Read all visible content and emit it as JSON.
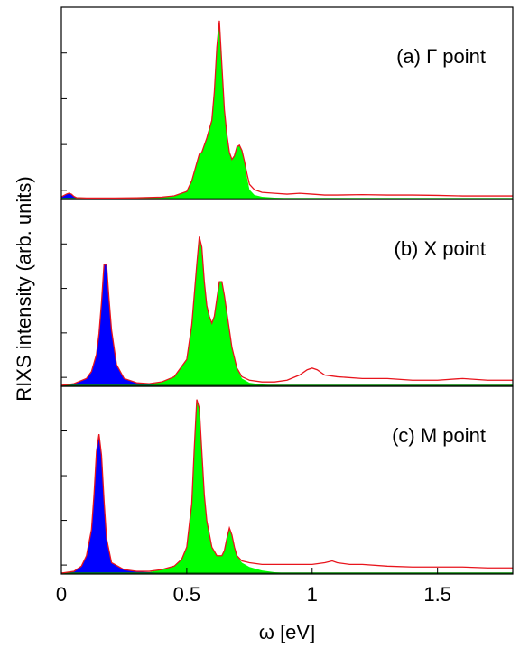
{
  "chart_data": {
    "type": "area",
    "xlabel": "ω [eV]",
    "ylabel": "RIXS intensity (arb. units)",
    "xlim": [
      0,
      1.8
    ],
    "xticks": [
      0,
      0.5,
      1,
      1.5
    ],
    "xtick_labels": [
      "0",
      "0.5",
      "1",
      "1.5"
    ],
    "ylim": [
      0,
      1.05
    ],
    "grid": false,
    "colors": {
      "total_line": "#e8141c",
      "low_energy_fill": "#0000ff",
      "main_fill": "#00ff00",
      "baseline": "#008000",
      "frame": "#000000"
    },
    "panels": [
      {
        "label": "(a) Γ point",
        "x": [
          0,
          0.02,
          0.03,
          0.04,
          0.05,
          0.06,
          0.1,
          0.2,
          0.3,
          0.4,
          0.45,
          0.5,
          0.52,
          0.54,
          0.55,
          0.56,
          0.58,
          0.6,
          0.61,
          0.62,
          0.63,
          0.64,
          0.65,
          0.66,
          0.67,
          0.68,
          0.69,
          0.7,
          0.71,
          0.72,
          0.73,
          0.74,
          0.75,
          0.77,
          0.8,
          0.85,
          0.9,
          0.95,
          1.0,
          1.05,
          1.1,
          1.2,
          1.3,
          1.4,
          1.5,
          1.6,
          1.7,
          1.8
        ],
        "total": [
          0.01,
          0.025,
          0.03,
          0.025,
          0.012,
          0.005,
          0.003,
          0.003,
          0.004,
          0.008,
          0.015,
          0.04,
          0.1,
          0.2,
          0.25,
          0.26,
          0.34,
          0.44,
          0.6,
          0.85,
          1.0,
          0.75,
          0.5,
          0.36,
          0.26,
          0.22,
          0.24,
          0.29,
          0.3,
          0.27,
          0.21,
          0.14,
          0.08,
          0.05,
          0.035,
          0.03,
          0.025,
          0.03,
          0.025,
          0.02,
          0.02,
          0.022,
          0.02,
          0.02,
          0.018,
          0.015,
          0.015,
          0.015
        ],
        "blue_fill": [
          0.01,
          0.025,
          0.03,
          0.025,
          0.012,
          0.005,
          0.0,
          0,
          0,
          0,
          0,
          0,
          0,
          0,
          0,
          0,
          0,
          0,
          0,
          0,
          0,
          0,
          0,
          0,
          0,
          0,
          0,
          0,
          0,
          0,
          0,
          0,
          0,
          0,
          0,
          0,
          0,
          0,
          0,
          0,
          0,
          0,
          0,
          0,
          0,
          0,
          0,
          0
        ],
        "green_fill": [
          0,
          0,
          0,
          0,
          0,
          0,
          0.002,
          0.002,
          0.003,
          0.007,
          0.014,
          0.04,
          0.1,
          0.2,
          0.25,
          0.26,
          0.34,
          0.44,
          0.6,
          0.85,
          1.0,
          0.75,
          0.5,
          0.36,
          0.26,
          0.22,
          0.24,
          0.29,
          0.3,
          0.27,
          0.21,
          0.12,
          0.05,
          0.02,
          0.01,
          0.005,
          0.002,
          0.001,
          0,
          0,
          0,
          0,
          0,
          0,
          0,
          0,
          0,
          0
        ]
      },
      {
        "label": "(b) X point",
        "x": [
          0,
          0.05,
          0.1,
          0.12,
          0.14,
          0.15,
          0.16,
          0.17,
          0.18,
          0.19,
          0.2,
          0.22,
          0.25,
          0.3,
          0.35,
          0.4,
          0.45,
          0.5,
          0.52,
          0.54,
          0.55,
          0.56,
          0.57,
          0.58,
          0.59,
          0.6,
          0.61,
          0.62,
          0.63,
          0.64,
          0.65,
          0.66,
          0.67,
          0.68,
          0.7,
          0.72,
          0.75,
          0.8,
          0.85,
          0.9,
          0.95,
          0.98,
          1.0,
          1.02,
          1.05,
          1.1,
          1.2,
          1.3,
          1.4,
          1.5,
          1.6,
          1.7,
          1.8
        ],
        "total": [
          0.0,
          0.01,
          0.04,
          0.08,
          0.18,
          0.3,
          0.48,
          0.7,
          0.7,
          0.5,
          0.32,
          0.12,
          0.04,
          0.015,
          0.01,
          0.02,
          0.05,
          0.15,
          0.35,
          0.7,
          0.86,
          0.8,
          0.6,
          0.46,
          0.4,
          0.36,
          0.4,
          0.5,
          0.6,
          0.6,
          0.52,
          0.42,
          0.32,
          0.22,
          0.1,
          0.05,
          0.03,
          0.02,
          0.02,
          0.03,
          0.06,
          0.09,
          0.1,
          0.09,
          0.06,
          0.05,
          0.04,
          0.04,
          0.03,
          0.03,
          0.04,
          0.03,
          0.03
        ],
        "blue_fill": [
          0.0,
          0.01,
          0.04,
          0.08,
          0.18,
          0.3,
          0.48,
          0.7,
          0.7,
          0.5,
          0.32,
          0.12,
          0.04,
          0.015,
          0.005,
          0,
          0,
          0,
          0,
          0,
          0,
          0,
          0,
          0,
          0,
          0,
          0,
          0,
          0,
          0,
          0,
          0,
          0,
          0,
          0,
          0,
          0,
          0,
          0,
          0,
          0,
          0,
          0,
          0,
          0,
          0,
          0,
          0,
          0,
          0,
          0,
          0,
          0
        ],
        "green_fill": [
          0,
          0,
          0,
          0,
          0,
          0,
          0,
          0,
          0,
          0,
          0,
          0,
          0,
          0,
          0.005,
          0.02,
          0.05,
          0.15,
          0.35,
          0.7,
          0.86,
          0.8,
          0.6,
          0.46,
          0.4,
          0.36,
          0.4,
          0.5,
          0.6,
          0.6,
          0.52,
          0.42,
          0.32,
          0.22,
          0.1,
          0.04,
          0.015,
          0.005,
          0,
          0,
          0,
          0,
          0,
          0,
          0,
          0,
          0,
          0,
          0,
          0,
          0,
          0,
          0
        ]
      },
      {
        "label": "(c) M point",
        "x": [
          0,
          0.05,
          0.08,
          0.1,
          0.12,
          0.13,
          0.14,
          0.15,
          0.16,
          0.17,
          0.18,
          0.2,
          0.25,
          0.3,
          0.35,
          0.4,
          0.45,
          0.48,
          0.5,
          0.52,
          0.53,
          0.54,
          0.55,
          0.56,
          0.57,
          0.58,
          0.6,
          0.62,
          0.64,
          0.65,
          0.66,
          0.67,
          0.68,
          0.69,
          0.7,
          0.72,
          0.75,
          0.8,
          0.85,
          0.9,
          0.95,
          1.0,
          1.05,
          1.08,
          1.1,
          1.15,
          1.2,
          1.3,
          1.4,
          1.5,
          1.6,
          1.7,
          1.8
        ],
        "total": [
          0.0,
          0.01,
          0.04,
          0.1,
          0.25,
          0.45,
          0.7,
          0.8,
          0.68,
          0.42,
          0.2,
          0.06,
          0.02,
          0.01,
          0.01,
          0.02,
          0.04,
          0.08,
          0.15,
          0.4,
          0.72,
          1.0,
          0.95,
          0.7,
          0.45,
          0.3,
          0.15,
          0.1,
          0.1,
          0.13,
          0.2,
          0.26,
          0.22,
          0.15,
          0.1,
          0.07,
          0.06,
          0.05,
          0.05,
          0.05,
          0.05,
          0.05,
          0.06,
          0.07,
          0.06,
          0.05,
          0.05,
          0.04,
          0.035,
          0.035,
          0.035,
          0.03,
          0.03
        ],
        "blue_fill": [
          0.0,
          0.01,
          0.04,
          0.1,
          0.25,
          0.45,
          0.7,
          0.8,
          0.68,
          0.42,
          0.2,
          0.06,
          0.02,
          0.01,
          0.005,
          0,
          0,
          0,
          0,
          0,
          0,
          0,
          0,
          0,
          0,
          0,
          0,
          0,
          0,
          0,
          0,
          0,
          0,
          0,
          0,
          0,
          0,
          0,
          0,
          0,
          0,
          0,
          0,
          0,
          0,
          0,
          0,
          0,
          0,
          0,
          0,
          0,
          0
        ],
        "green_fill": [
          0,
          0,
          0,
          0,
          0,
          0,
          0,
          0,
          0,
          0,
          0,
          0,
          0,
          0,
          0.005,
          0.02,
          0.04,
          0.08,
          0.15,
          0.4,
          0.72,
          1.0,
          0.95,
          0.7,
          0.45,
          0.3,
          0.15,
          0.1,
          0.1,
          0.13,
          0.2,
          0.26,
          0.22,
          0.15,
          0.1,
          0.06,
          0.035,
          0.015,
          0.005,
          0,
          0,
          0,
          0,
          0,
          0,
          0,
          0,
          0,
          0,
          0,
          0,
          0,
          0
        ]
      }
    ]
  }
}
